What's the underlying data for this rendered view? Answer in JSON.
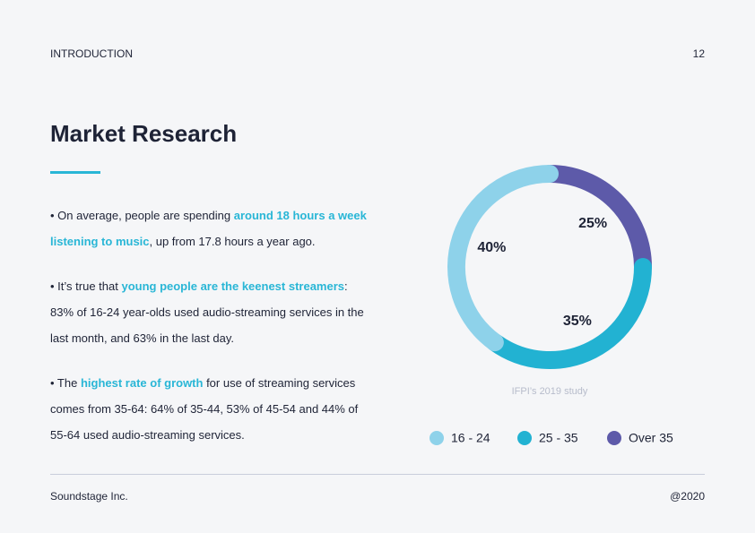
{
  "header": {
    "section": "INTRODUCTION",
    "page": "12"
  },
  "title": "Market Research",
  "paragraphs": [
    [
      "• On average, people are spending ",
      "around 18 hours a week listening to music",
      ", up from 17.8 hours a year ago."
    ],
    [
      "• It’s true that ",
      "young people are the keenest streamers",
      ": 83% of 16-24 year-olds used audio-streaming services in the last month, and 63% in the last day."
    ],
    [
      "• The ",
      "highest rate of growth",
      " for use of streaming services comes from 35-64: 64% of 35-44, 53% of 45-54 and 44% of 55-64 used audio-streaming services."
    ]
  ],
  "chart_data": {
    "type": "donut",
    "categories": [
      "16 - 24",
      "25 - 35",
      "Over 35"
    ],
    "values": [
      40,
      35,
      25
    ],
    "value_labels": [
      "40%",
      "35%",
      "25%"
    ],
    "colors": [
      "#8ed2ea",
      "#22b2d2",
      "#5d5aa9"
    ],
    "caption": "IFPI’s 2019 study"
  },
  "footer": {
    "company": "Soundstage Inc.",
    "year": "@2020"
  }
}
